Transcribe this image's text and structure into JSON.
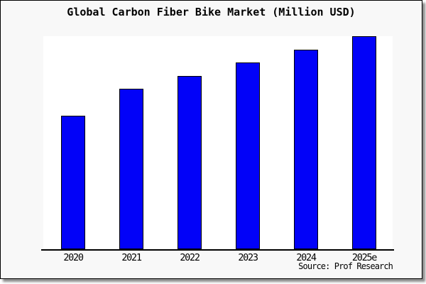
{
  "window": {
    "background_color": "#f8f8f8",
    "plot_background_color": "#ffffff",
    "frame_border_color": "#000000"
  },
  "chart_data": {
    "type": "bar",
    "title": "Global Carbon Fiber Bike Market (Million USD)",
    "categories": [
      "2020",
      "2021",
      "2022",
      "2023",
      "2024",
      "2025e"
    ],
    "values": [
      62.7,
      75.3,
      81.3,
      87.7,
      93.7,
      100
    ],
    "values_note": "relative heights, max bar = 100; no y-axis scale, gridlines or data labels are shown",
    "xlabel": "",
    "ylabel": "",
    "ylim": [
      0,
      100
    ],
    "grid": false,
    "legend": false,
    "bar_color": "#0202f8",
    "bar_border_color": "#000000"
  },
  "footer": {
    "source_label": "Source: Prof Research"
  }
}
